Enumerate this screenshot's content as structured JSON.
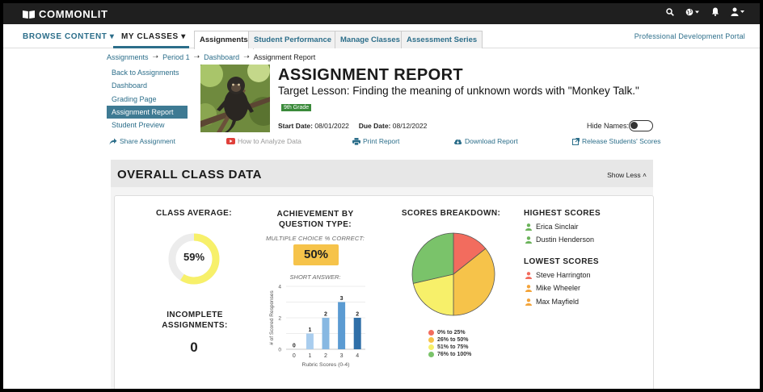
{
  "app": {
    "brand": "COMMONLIT"
  },
  "topbar": {
    "icons": [
      "search-icon",
      "globe-icon",
      "bell-icon",
      "user-icon"
    ]
  },
  "nav": {
    "browse": "BROWSE CONTENT",
    "my_classes": "MY CLASSES",
    "tabs": [
      "Assignments",
      "Student Performance",
      "Manage Classes",
      "Assessment Series"
    ],
    "active_tab": "Assignments",
    "pd_portal": "Professional Development Portal"
  },
  "breadcrumb": [
    "Assignments",
    "Period 1",
    "Dashboard",
    "Assignment Report"
  ],
  "sidemenu": [
    "Back to Assignments",
    "Dashboard",
    "Grading Page",
    "Assignment Report",
    "Student Preview"
  ],
  "header": {
    "title": "ASSIGNMENT REPORT",
    "subtitle": "Target Lesson: Finding the meaning of unknown words with \"Monkey Talk.\"",
    "grade": "9th Grade",
    "start_label": "Start Date:",
    "start_date": "08/01/2022",
    "due_label": "Due Date:",
    "due_date": "08/12/2022",
    "hide_names": "Hide Names:",
    "hide_names_on": false
  },
  "actions": {
    "share": "Share Assignment",
    "analyze": "How to Analyze Data",
    "print": "Print Report",
    "download": "Download Report",
    "release": "Release Students' Scores"
  },
  "panel": {
    "title": "OVERALL CLASS DATA",
    "toggle": "Show Less"
  },
  "class_average": {
    "label": "CLASS AVERAGE:",
    "value": "59%",
    "fraction": 0.59
  },
  "incomplete": {
    "label": "INCOMPLETE ASSIGNMENTS:",
    "value": "0"
  },
  "achievement": {
    "label": "ACHIEVEMENT BY QUESTION TYPE:",
    "mc_label": "MULTIPLE CHOICE % CORRECT:",
    "mc_value": "50%",
    "sa_label": "SHORT ANSWER:"
  },
  "breakdown": {
    "label": "SCORES BREAKDOWN:",
    "legend": [
      {
        "label": "0% to 25%",
        "color": "#f26c5e"
      },
      {
        "label": "26% to 50%",
        "color": "#f6c34a"
      },
      {
        "label": "51% to 75%",
        "color": "#f7f06a"
      },
      {
        "label": "76% to 100%",
        "color": "#7ac36a"
      }
    ]
  },
  "highest": {
    "label": "HIGHEST SCORES",
    "students": [
      "Erica Sinclair",
      "Dustin Henderson"
    ],
    "color": "#6bb35a"
  },
  "lowest": {
    "label": "LOWEST SCORES",
    "students": [
      "Steve Harrington",
      "Mike Wheeler",
      "Max Mayfield"
    ],
    "colors": [
      "#f26c5e",
      "#f3a43a",
      "#f3a43a"
    ]
  },
  "chart_data": [
    {
      "type": "bar",
      "categories": [
        "0",
        "1",
        "2",
        "3",
        "4"
      ],
      "values": [
        0,
        1,
        2,
        3,
        2
      ],
      "xlabel": "Rubric Scores (0-4)",
      "ylabel": "# of Scored Responses",
      "ylim": [
        0,
        4
      ],
      "yticks": [
        "0",
        "2",
        "4"
      ],
      "colors": [
        "#c9def0",
        "#a9cdee",
        "#87b8e2",
        "#5b9bd2",
        "#2f6fa8"
      ]
    },
    {
      "type": "pie",
      "categories": [
        "0% to 25%",
        "26% to 50%",
        "51% to 75%",
        "76% to 100%"
      ],
      "values": [
        2,
        5,
        3,
        4
      ],
      "colors": [
        "#f26c5e",
        "#f6c34a",
        "#f7f06a",
        "#7ac36a"
      ]
    }
  ]
}
